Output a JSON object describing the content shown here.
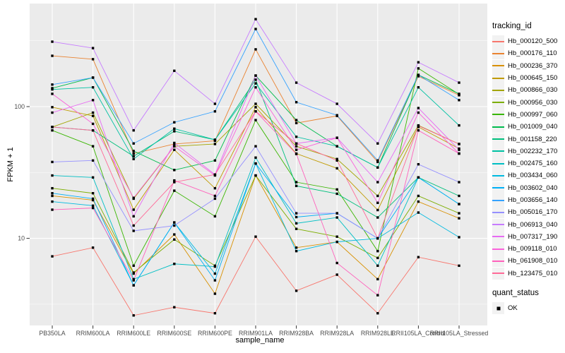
{
  "figure": {
    "xlabel": "sample_name",
    "ylabel": "FPKM + 1",
    "legend_color_title": "tracking_id",
    "legend_shape_title": "quant_status",
    "legend_shape_items": [
      {
        "label": "OK",
        "marker": "black-square"
      }
    ]
  },
  "theme": {
    "background": "#FFFFFF",
    "panel_bg": "#EBEBEB",
    "grid_color": "#FFFFFF",
    "axis_text_color": "#4D4D4D",
    "title_text_color": "#000000",
    "tick_color": "#333333",
    "legend_key_bg": "#F2F2F2",
    "point_color": "#000000"
  },
  "chart_data": {
    "type": "line",
    "x_type": "categorical",
    "y_scale": "log10",
    "title": "",
    "xlabel": "sample_name",
    "ylabel": "FPKM + 1",
    "ylim": [
      2.2,
      600
    ],
    "y_ticks": [
      100,
      10
    ],
    "y_minor_gridlines": [
      3.162,
      31.623,
      316.228
    ],
    "grid": true,
    "legend_position": "right",
    "marker": "filled-square",
    "marker_legend": {
      "title": "quant_status",
      "items": [
        "OK"
      ]
    },
    "categories": [
      "PB350LA",
      "RRIM600LA",
      "RRIM600LE",
      "RRIM600SE",
      "RRIM600PE",
      "RRIM901LA",
      "RRIM928BA",
      "RRIM928LA",
      "RRIM928LE",
      "RRII105LA_Control",
      "RRII105LA_Stressed"
    ],
    "series": [
      {
        "name": "Hb_000120_500",
        "color": "#F8766D",
        "values": [
          7.3,
          8.5,
          2.6,
          3.0,
          2.7,
          10.3,
          4.0,
          5.3,
          2.7,
          7.2,
          6.2
        ]
      },
      {
        "name": "Hb_000176_110",
        "color": "#EA8331",
        "values": [
          243,
          229,
          44,
          52,
          55,
          272,
          75,
          85,
          38,
          170,
          122
        ]
      },
      {
        "name": "Hb_000236_370",
        "color": "#D89000",
        "values": [
          21,
          19.5,
          5.4,
          10.7,
          3.8,
          30,
          8.5,
          9.4,
          4.9,
          19,
          14.2
        ]
      },
      {
        "name": "Hb_000645_150",
        "color": "#C09B00",
        "values": [
          99,
          85,
          16.5,
          47,
          24,
          99,
          44,
          34,
          16.4,
          70,
          48
        ]
      },
      {
        "name": "Hb_000866_030",
        "color": "#A3A500",
        "values": [
          70,
          90,
          20,
          50,
          52,
          105,
          50,
          40,
          21,
          72,
          52
        ]
      },
      {
        "name": "Hb_000956_030",
        "color": "#7CAE00",
        "values": [
          24,
          22,
          5.5,
          9.8,
          6.2,
          30,
          11.8,
          10.3,
          7.1,
          21,
          15.5
        ]
      },
      {
        "name": "Hb_000997_060",
        "color": "#39B600",
        "values": [
          66,
          50,
          6.2,
          23,
          14.7,
          79,
          26.7,
          23.5,
          8.0,
          195,
          124
        ]
      },
      {
        "name": "Hb_001009_040",
        "color": "#00BB4E",
        "values": [
          138,
          166,
          46,
          33,
          39,
          172,
          79,
          50,
          34.5,
          174,
          125
        ]
      },
      {
        "name": "Hb_001158_220",
        "color": "#00BF7D",
        "values": [
          70,
          66,
          42,
          65,
          56,
          160,
          25,
          21.8,
          14.4,
          29,
          21
        ]
      },
      {
        "name": "Hb_002232_170",
        "color": "#00C1A3",
        "values": [
          135,
          140,
          40,
          68,
          56,
          150,
          59,
          50,
          34.5,
          140,
          72
        ]
      },
      {
        "name": "Hb_002475_160",
        "color": "#00BFC4",
        "values": [
          30,
          29,
          4.9,
          6.4,
          6.1,
          41,
          13,
          14.4,
          6.2,
          29,
          18.2
        ]
      },
      {
        "name": "Hb_003434_060",
        "color": "#00BAE0",
        "values": [
          19,
          17.7,
          4.4,
          13.2,
          5.4,
          37,
          8.0,
          9.4,
          10,
          15.7,
          10.2
        ]
      },
      {
        "name": "Hb_003602_040",
        "color": "#00B0F6",
        "values": [
          22,
          20,
          4.4,
          13.2,
          4.8,
          37,
          14.5,
          15.5,
          10,
          29,
          18.2
        ]
      },
      {
        "name": "Hb_003656_140",
        "color": "#35A2FF",
        "values": [
          147,
          166,
          52.5,
          76,
          92,
          388,
          108,
          86,
          39,
          174,
          112
        ]
      },
      {
        "name": "Hb_005016_170",
        "color": "#9590FF",
        "values": [
          38,
          39,
          11.4,
          12.5,
          20,
          50,
          15.5,
          15.5,
          10,
          36.5,
          26.7
        ]
      },
      {
        "name": "Hb_006913_040",
        "color": "#C77CFF",
        "values": [
          311,
          278,
          66,
          187,
          105,
          461,
          152,
          105,
          52.5,
          217,
          152
        ]
      },
      {
        "name": "Hb_007317_190",
        "color": "#E76BF3",
        "values": [
          90,
          112,
          14.7,
          53,
          30.5,
          172,
          52.5,
          58,
          26.7,
          97.5,
          47
        ]
      },
      {
        "name": "Hb_009118_010",
        "color": "#FA62DB",
        "values": [
          125,
          74,
          20.3,
          50,
          30,
          140,
          47,
          58,
          18.6,
          90,
          44
        ]
      },
      {
        "name": "Hb_061908_010",
        "color": "#FF62BC",
        "values": [
          16.5,
          17,
          4.8,
          27.5,
          21,
          92,
          43.7,
          6.5,
          3.7,
          66,
          44
        ]
      },
      {
        "name": "Hb_123475_010",
        "color": "#FF6A98",
        "values": [
          70,
          66,
          12.5,
          26.7,
          30.5,
          92,
          52.5,
          39,
          10,
          71.5,
          52
        ]
      }
    ]
  }
}
